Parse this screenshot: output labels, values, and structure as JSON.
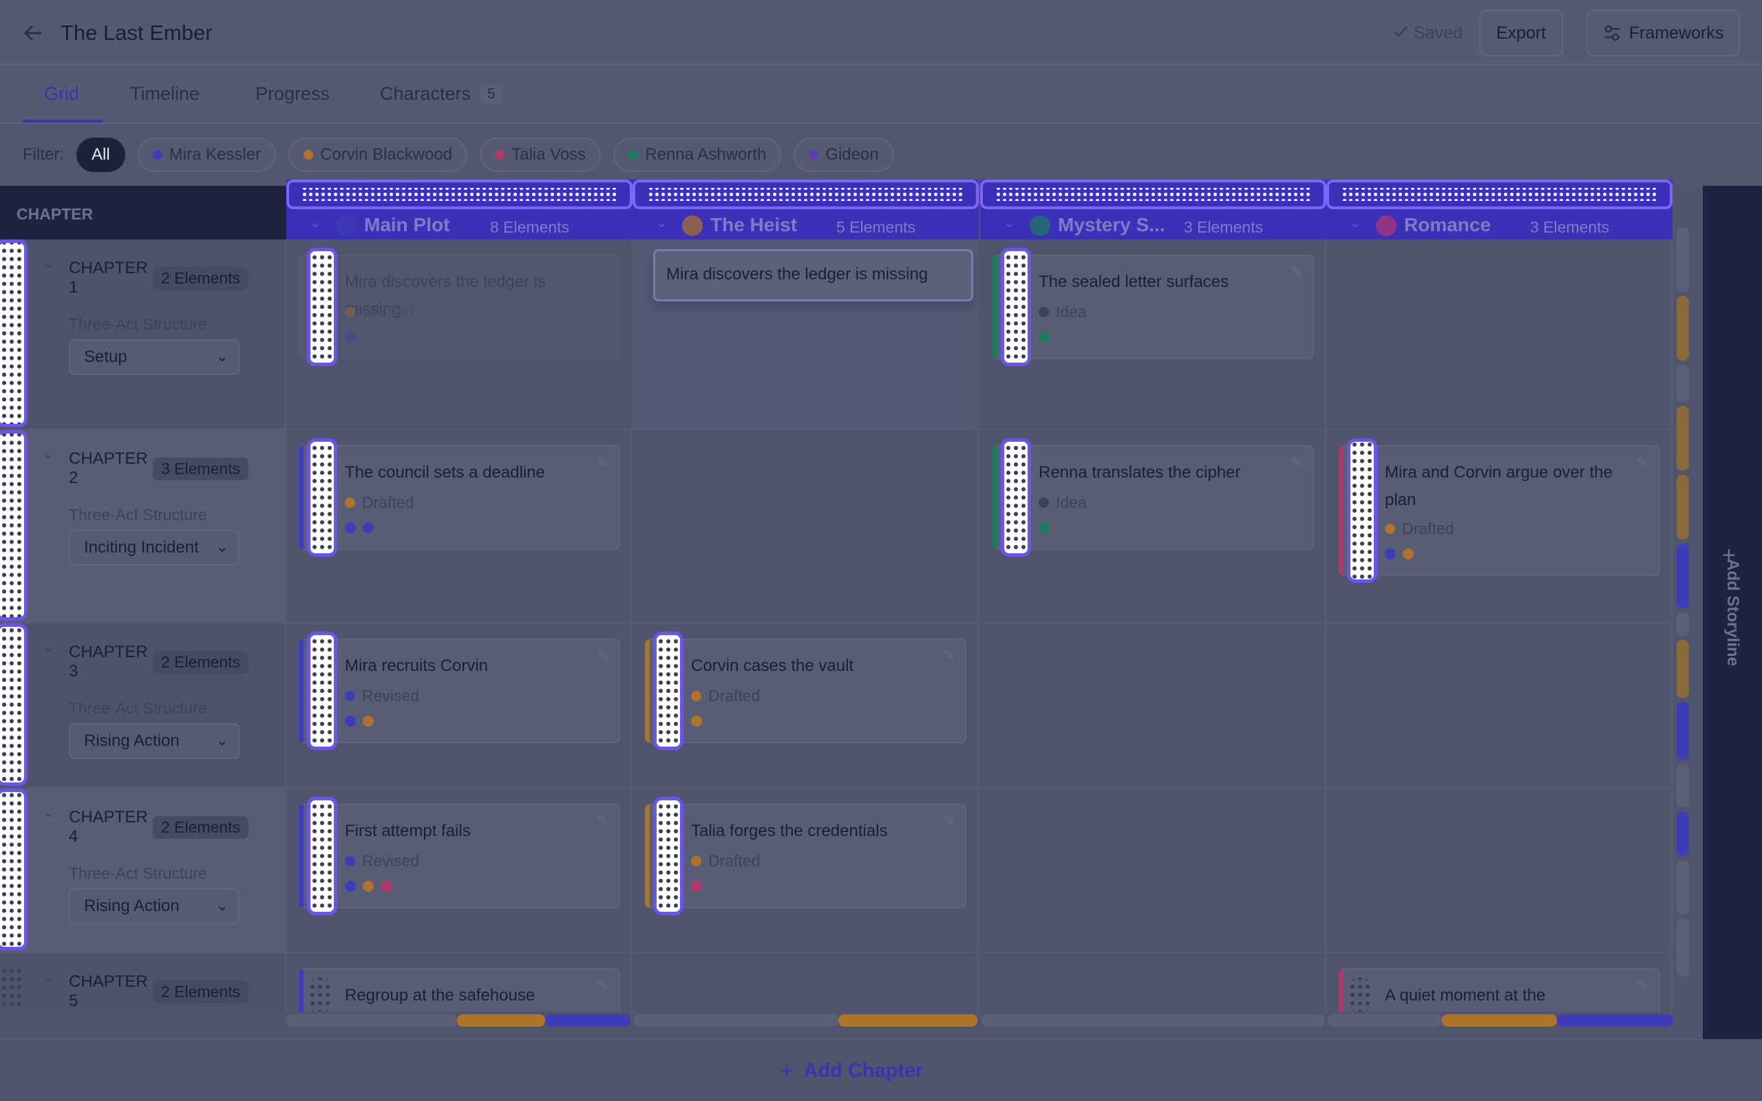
{
  "header": {
    "title": "The Last Ember",
    "saved": "Saved",
    "export": "Export",
    "frameworks": "Frameworks"
  },
  "tabs": [
    {
      "label": "Grid",
      "active": true
    },
    {
      "label": "Timeline"
    },
    {
      "label": "Progress"
    },
    {
      "label": "Characters",
      "count": 5
    }
  ],
  "filter": {
    "label": "Filter:",
    "chips": [
      {
        "label": "All",
        "active": true
      },
      {
        "label": "Mira Kessler",
        "color": "#3f3cb8"
      },
      {
        "label": "Corvin Blackwood",
        "color": "#b07428"
      },
      {
        "label": "Talia Voss",
        "color": "#b2386c"
      },
      {
        "label": "Renna Ashworth",
        "color": "#1b7c60"
      },
      {
        "label": "Gideon",
        "color": "#5a3cb8"
      }
    ]
  },
  "grid": {
    "chapter_header": "CHAPTER",
    "storylines": [
      {
        "name": "Main Plot",
        "count": "8 Elements",
        "color": "#3f3cb8"
      },
      {
        "name": "The Heist",
        "count": "5 Elements",
        "color": "#b07428"
      },
      {
        "name": "Mystery S...",
        "count": "3 Elements",
        "color": "#1b7c60"
      },
      {
        "name": "Romance",
        "count": "3 Elements",
        "color": "#b2386c"
      }
    ],
    "chapters": [
      {
        "label": "CHAPTER 1",
        "count": "2 Elements",
        "structure_label": "Three-Act Structure",
        "beat": "Setup",
        "cards": [
          {
            "title": "Mira discovers the ledger is missing",
            "status": "Drafted",
            "status_color": "#b07428",
            "dots": [
              "#3f3cb8"
            ],
            "faded": true
          },
          null,
          {
            "title": "The sealed letter surfaces",
            "status": "Idea",
            "status_color": "#3c4258",
            "dots": [
              "#1b7c60"
            ]
          },
          null
        ]
      },
      {
        "label": "CHAPTER 2",
        "count": "3 Elements",
        "structure_label": "Three-Act Structure",
        "beat": "Inciting Incident",
        "cards": [
          {
            "title": "The council sets a deadline",
            "status": "Drafted",
            "status_color": "#b07428",
            "dots": [
              "#3f3cb8",
              "#3f3cb8"
            ]
          },
          null,
          {
            "title": "Renna translates the cipher",
            "status": "Idea",
            "status_color": "#3c4258",
            "dots": [
              "#1b7c60"
            ]
          },
          {
            "title": "Mira and Corvin argue over the plan",
            "status": "Drafted",
            "status_color": "#b07428",
            "dots": [
              "#3f3cb8",
              "#b07428"
            ]
          }
        ]
      },
      {
        "label": "CHAPTER 3",
        "count": "2 Elements",
        "structure_label": "Three-Act Structure",
        "beat": "Rising Action",
        "cards": [
          {
            "title": "Mira recruits Corvin",
            "status": "Revised",
            "status_color": "#3f3cb8",
            "dots": [
              "#3f3cb8",
              "#b07428"
            ]
          },
          {
            "title": "Corvin cases the vault",
            "status": "Drafted",
            "status_color": "#b07428",
            "dots": [
              "#b07428"
            ]
          },
          null,
          null
        ]
      },
      {
        "label": "CHAPTER 4",
        "count": "2 Elements",
        "structure_label": "Three-Act Structure",
        "beat": "Rising Action",
        "cards": [
          {
            "title": "First attempt fails",
            "status": "Revised",
            "status_color": "#3f3cb8",
            "dots": [
              "#3f3cb8",
              "#b07428",
              "#b2386c"
            ]
          },
          {
            "title": "Talia forges the credentials",
            "status": "Drafted",
            "status_color": "#b07428",
            "dots": [
              "#b2386c"
            ]
          },
          null,
          null
        ]
      },
      {
        "label": "CHAPTER 5",
        "count": "2 Elements",
        "cards": [
          {
            "title": "Regroup at the safehouse"
          },
          null,
          null,
          {
            "title": "A quiet moment at the"
          }
        ]
      }
    ],
    "drag_preview": {
      "text": "Mira discovers the ledger is missing"
    }
  },
  "add_storyline": "Add Storyline",
  "add_chapter": "Add Chapter"
}
